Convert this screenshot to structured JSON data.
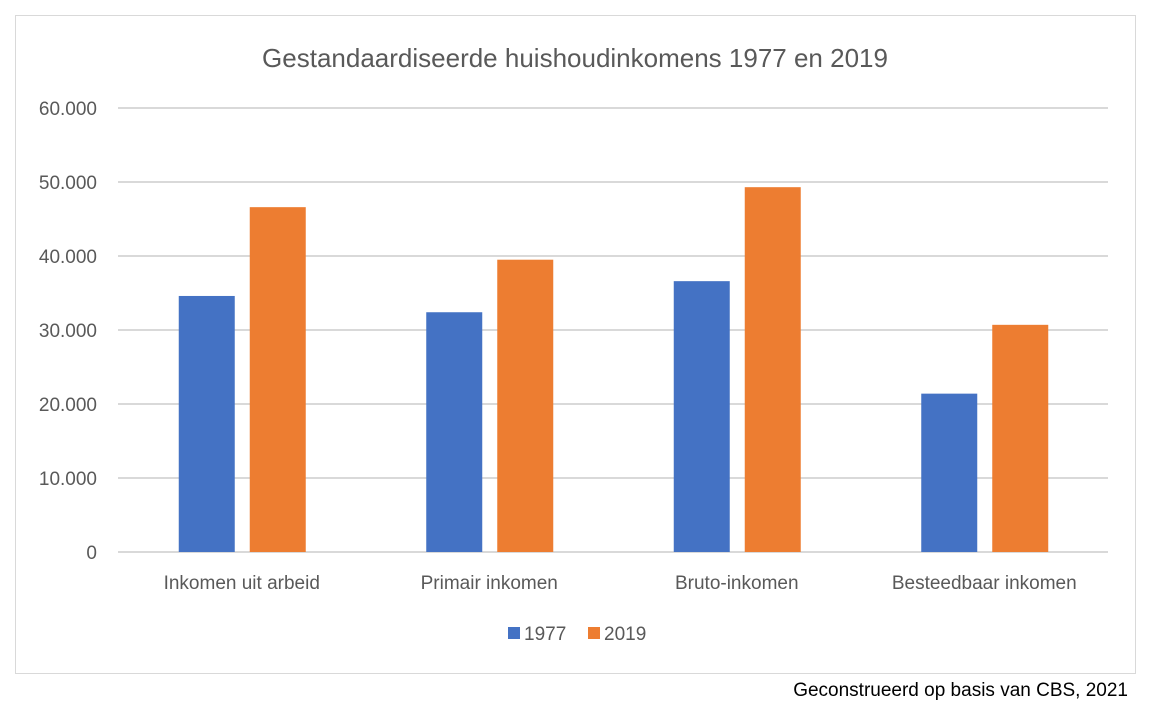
{
  "chart_data": {
    "type": "bar",
    "title": "Gestandaardiseerde huishoudinkomens 1977 en 2019",
    "categories": [
      "Inkomen uit arbeid",
      "Primair inkomen",
      "Bruto-inkomen",
      "Besteedbaar inkomen"
    ],
    "series": [
      {
        "name": "1977",
        "color": "#4472c4",
        "values": [
          34600,
          32400,
          36600,
          21400
        ]
      },
      {
        "name": "2019",
        "color": "#ed7d31",
        "values": [
          46600,
          39500,
          49300,
          30700
        ]
      }
    ],
    "ylim": [
      0,
      60000
    ],
    "yticks": [
      0,
      10000,
      20000,
      30000,
      40000,
      50000,
      60000
    ],
    "ytick_labels": [
      "0",
      "10.000",
      "20.000",
      "30.000",
      "40.000",
      "50.000",
      "60.000"
    ],
    "grid": true,
    "legend": "bottom",
    "xlabel": "",
    "ylabel": ""
  },
  "source": "Geconstrueerd op basis van CBS, 2021"
}
